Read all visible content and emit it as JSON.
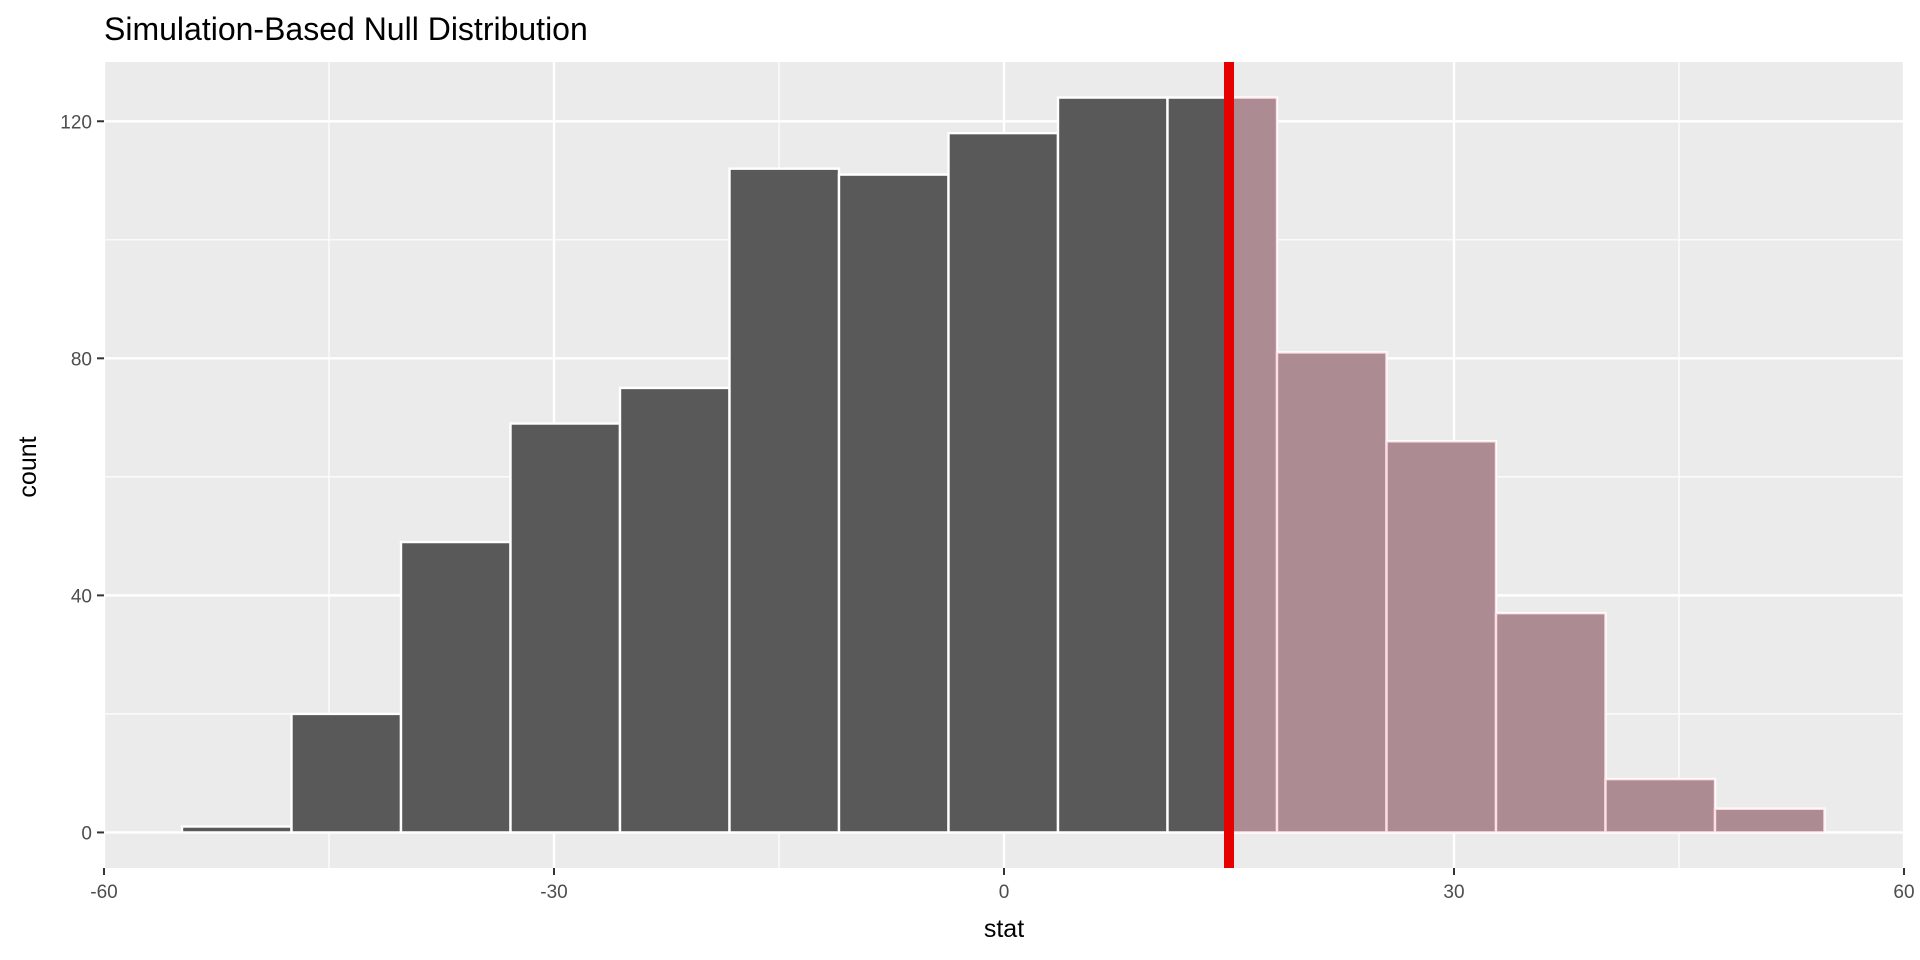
{
  "chart_data": {
    "type": "bar",
    "title": "Simulation-Based Null Distribution",
    "xlabel": "stat",
    "ylabel": "count",
    "xlim": [
      -60,
      60
    ],
    "ylim": [
      -6,
      130
    ],
    "x_ticks": [
      -60,
      -30,
      0,
      30,
      60
    ],
    "x_tick_labels": [
      "-60",
      "-30",
      "0",
      "30",
      "60"
    ],
    "y_ticks": [
      0,
      40,
      80,
      120
    ],
    "y_tick_labels": [
      "0",
      "40",
      "80",
      "120"
    ],
    "grid": true,
    "bin_width": 7.3,
    "bins": [
      {
        "xmin": -54.8,
        "xmax": -47.5,
        "count": 1
      },
      {
        "xmin": -47.5,
        "xmax": -40.2,
        "count": 20
      },
      {
        "xmin": -40.2,
        "xmax": -32.9,
        "count": 49
      },
      {
        "xmin": -32.9,
        "xmax": -25.6,
        "count": 69
      },
      {
        "xmin": -25.6,
        "xmax": -18.3,
        "count": 75
      },
      {
        "xmin": -18.3,
        "xmax": -11.0,
        "count": 112
      },
      {
        "xmin": -11.0,
        "xmax": -3.7,
        "count": 111
      },
      {
        "xmin": -3.7,
        "xmax": 3.6,
        "count": 118
      },
      {
        "xmin": 3.6,
        "xmax": 10.9,
        "count": 124
      },
      {
        "xmin": 10.9,
        "xmax": 18.2,
        "count": 124
      },
      {
        "xmin": 18.2,
        "xmax": 25.5,
        "count": 81
      },
      {
        "xmin": 25.5,
        "xmax": 32.8,
        "count": 66
      },
      {
        "xmin": 32.8,
        "xmax": 40.1,
        "count": 37
      },
      {
        "xmin": 40.1,
        "xmax": 47.4,
        "count": 9
      },
      {
        "xmin": 47.4,
        "xmax": 54.7,
        "count": 4
      }
    ],
    "observed_stat": 15.0,
    "shade_direction": "right",
    "colors": {
      "bar_fill": "#595959",
      "shade_fill": "#FFC0CB",
      "shade_opacity": 0.5,
      "obs_line": "#E60000",
      "panel_bg": "#EBEBEB",
      "grid": "#FFFFFF"
    }
  }
}
